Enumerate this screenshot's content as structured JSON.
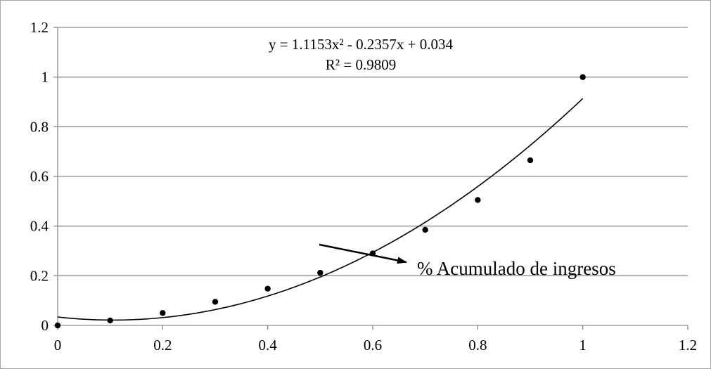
{
  "chart_data": {
    "type": "scatter",
    "title": "",
    "xlabel": "",
    "ylabel": "",
    "xlim": [
      0,
      1.2
    ],
    "ylim": [
      0,
      1.2
    ],
    "x_ticks": [
      "0",
      "0.2",
      "0.4",
      "0.6",
      "0.8",
      "1",
      "1.2"
    ],
    "y_ticks": [
      "0",
      "0.2",
      "0.4",
      "0.6",
      "0.8",
      "1",
      "1.2"
    ],
    "grid": "horizontal",
    "series": [
      {
        "x": [
          0,
          0.1,
          0.2,
          0.3,
          0.4,
          0.5,
          0.6,
          0.7,
          0.8,
          0.9,
          1.0
        ],
        "y": [
          0.0,
          0.02,
          0.05,
          0.095,
          0.148,
          0.212,
          0.29,
          0.385,
          0.505,
          0.665,
          1.0
        ],
        "color": "#000000"
      }
    ],
    "trendline": {
      "type": "polynomial",
      "order": 2,
      "coefficients": [
        1.1153,
        -0.2357,
        0.034
      ],
      "x_range": [
        0,
        1.0
      ],
      "equation_text": "y = 1.1153x² - 0.2357x + 0.034",
      "r2_text": "R² = 0.9809"
    },
    "annotation": {
      "text": "% Acumulado de ingresos",
      "points_to": {
        "x": 0.6,
        "y": 0.29
      }
    }
  }
}
